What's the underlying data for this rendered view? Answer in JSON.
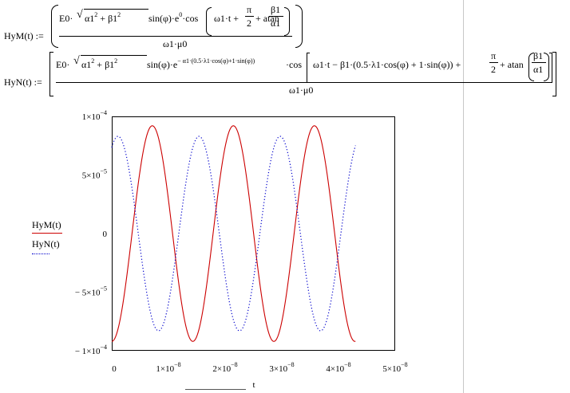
{
  "equations": {
    "hym": {
      "lhs": "HyM(t) :=",
      "numerator": "E0·√(α1² + β1²)·sin(φ)·e⁰·cos(ω1·t + π/2 + atan(β1/α1))",
      "num_prefix": "E0·",
      "num_sqrt": "α1",
      "num_sqrt_mid": " + β1",
      "num_after": " sin(φ)·e",
      "num_exp": "0",
      "num_cos": "·cos",
      "num_inner": "ω1·t + ",
      "pi": "π",
      "two": "2",
      "num_plus_atan": " + atan",
      "beta": "β1",
      "alpha": "α1",
      "denominator": "ω1·μ0"
    },
    "hyn": {
      "lhs": "HyN(t) :=",
      "num_prefix": "E0·",
      "num_sqrt": "α1",
      "num_sqrt_mid": " + β1",
      "num_after": " sin(φ)·e",
      "num_exp": "− α1·(0.5·λ1·cos(φ)+1·sin(φ))",
      "num_cos": "·cos",
      "num_inner": "ω1·t − β1·(0.5·λ1·cos(φ) + 1·sin(φ)) + ",
      "pi": "π",
      "two": "2",
      "num_plus_atan": " + atan",
      "beta": "β1",
      "alpha": "α1",
      "denominator": "ω1·μ0"
    },
    "sq": "2"
  },
  "chart_data": {
    "type": "line",
    "xlabel": "t",
    "xlim": [
      0,
      5e-08
    ],
    "ylim": [
      -0.0001,
      0.0001
    ],
    "x_ticks": [
      0,
      1e-08,
      2e-08,
      3e-08,
      4e-08,
      5e-08
    ],
    "x_tick_labels": [
      "0",
      "1×10",
      "2×10",
      "3×10",
      "4×10",
      "5×10"
    ],
    "x_tick_exp": [
      "",
      "−8",
      "−8",
      "−8",
      "−8",
      "−8"
    ],
    "y_ticks": [
      0.0001,
      5e-05,
      0,
      -5e-05,
      -0.0001
    ],
    "y_tick_labels": [
      "1×10",
      "5×10",
      "0",
      "− 5×10",
      "− 1×10"
    ],
    "y_tick_exp": [
      "−4",
      "−5",
      "",
      "−5",
      "−4"
    ],
    "legend": [
      "HyM(t)",
      "HyN(t)"
    ],
    "grid": false,
    "series": [
      {
        "name": "HyM(t)",
        "color": "#cc0000",
        "style": "solid",
        "amplitude": 9.2e-05,
        "period": 1.43e-08,
        "phase_shift_s": 7.15e-09,
        "x_range": [
          0,
          4.3e-08
        ]
      },
      {
        "name": "HyN(t)",
        "color": "#0000cc",
        "style": "dotted",
        "amplitude": 8.3e-05,
        "period": 1.43e-08,
        "phase_shift_s": 1.1e-09,
        "x_range": [
          0,
          4.3e-08
        ]
      }
    ]
  }
}
